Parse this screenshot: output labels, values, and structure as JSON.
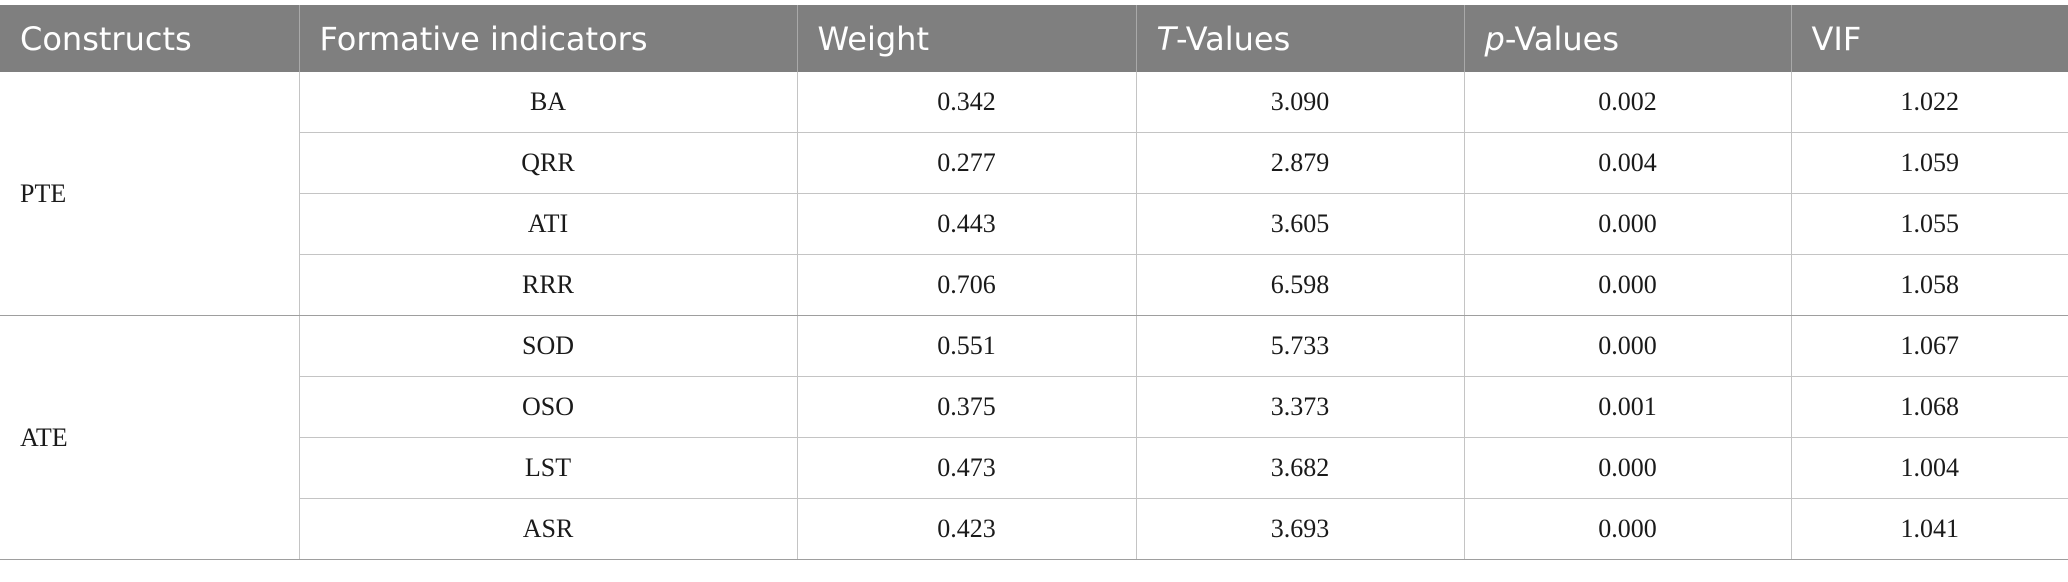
{
  "table": {
    "headers": {
      "constructs": "Constructs",
      "indicators": "Formative indicators",
      "weight": "Weight",
      "t_prefix": "T",
      "t_suffix": "-Values",
      "p_prefix": "p",
      "p_suffix": "-Values",
      "vif": "VIF"
    },
    "groups": [
      {
        "construct": "PTE",
        "rows": [
          {
            "indicator": "BA",
            "weight": "0.342",
            "t": "3.090",
            "p": "0.002",
            "vif": "1.022"
          },
          {
            "indicator": "QRR",
            "weight": "0.277",
            "t": "2.879",
            "p": "0.004",
            "vif": "1.059"
          },
          {
            "indicator": "ATI",
            "weight": "0.443",
            "t": "3.605",
            "p": "0.000",
            "vif": "1.055"
          },
          {
            "indicator": "RRR",
            "weight": "0.706",
            "t": "6.598",
            "p": "0.000",
            "vif": "1.058"
          }
        ]
      },
      {
        "construct": "ATE",
        "rows": [
          {
            "indicator": "SOD",
            "weight": "0.551",
            "t": "5.733",
            "p": "0.000",
            "vif": "1.067"
          },
          {
            "indicator": "OSO",
            "weight": "0.375",
            "t": "3.373",
            "p": "0.001",
            "vif": "1.068"
          },
          {
            "indicator": "LST",
            "weight": "0.473",
            "t": "3.682",
            "p": "0.000",
            "vif": "1.004"
          },
          {
            "indicator": "ASR",
            "weight": "0.423",
            "t": "3.693",
            "p": "0.000",
            "vif": "1.041"
          }
        ]
      }
    ]
  }
}
